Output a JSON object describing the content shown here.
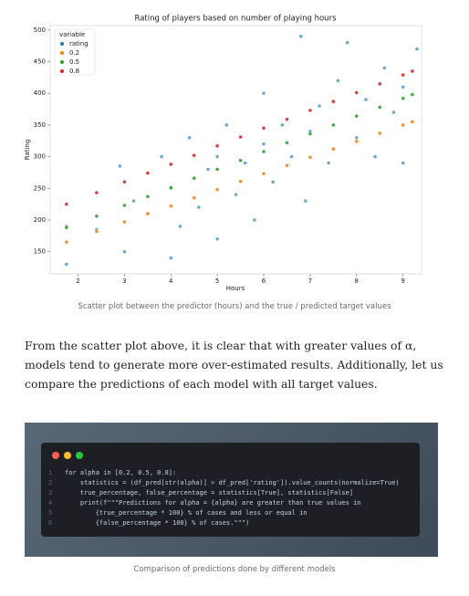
{
  "chart_data": {
    "type": "scatter",
    "title": "Rating of players based on number of playing hours",
    "x_label": "Hours",
    "y_label": "Rating",
    "legend_title": "variable",
    "legend": "upper left",
    "xlim": [
      1.4,
      9.4
    ],
    "xticks": [
      2,
      3,
      4,
      5,
      6,
      7,
      8,
      9
    ],
    "ylim": [
      115,
      507
    ],
    "yticks": [
      150,
      200,
      250,
      300,
      350,
      400,
      450,
      500
    ],
    "series": [
      {
        "name": "rating",
        "color": "#1f77b4",
        "x": [
          1.75,
          1.75,
          2.4,
          2.9,
          3,
          3.2,
          3.5,
          3.8,
          4,
          4,
          4.2,
          4.4,
          4.6,
          4.8,
          5,
          5,
          5.2,
          5.4,
          5.6,
          5.8,
          6,
          6,
          6.2,
          6.4,
          6.6,
          6.8,
          6.9,
          7,
          7.2,
          7.4,
          7.6,
          7.8,
          8,
          8.2,
          8.4,
          8.6,
          8.8,
          9,
          9,
          9.3
        ],
        "values": [
          130,
          190,
          185,
          285,
          150,
          230,
          210,
          300,
          140,
          250,
          190,
          330,
          220,
          280,
          170,
          300,
          350,
          240,
          290,
          200,
          320,
          400,
          260,
          350,
          300,
          490,
          230,
          340,
          380,
          290,
          420,
          480,
          330,
          390,
          300,
          440,
          370,
          290,
          410,
          470
        ]
      },
      {
        "name": "0.2",
        "color": "#ff7f0e",
        "x": [
          1.75,
          2.4,
          3,
          3.5,
          4,
          4.5,
          5,
          5.5,
          6,
          6.5,
          7,
          7.5,
          8,
          8.5,
          9,
          9.2
        ],
        "values": [
          165,
          182,
          197,
          210,
          222,
          235,
          248,
          261,
          273,
          286,
          299,
          312,
          324,
          337,
          350,
          355
        ]
      },
      {
        "name": "0.5",
        "color": "#2ca02c",
        "x": [
          1.75,
          2.4,
          3,
          3.5,
          4,
          4.5,
          5,
          5.5,
          6,
          6.5,
          7,
          7.5,
          8,
          8.5,
          9,
          9.2
        ],
        "values": [
          188,
          206,
          223,
          237,
          251,
          266,
          280,
          294,
          308,
          322,
          336,
          350,
          364,
          378,
          392,
          398
        ]
      },
      {
        "name": "0.8",
        "color": "#d62728",
        "x": [
          1.75,
          2.4,
          3,
          3.5,
          4,
          4.5,
          5,
          5.5,
          6,
          6.5,
          7,
          7.5,
          8,
          8.5,
          9,
          9.2
        ],
        "values": [
          225,
          243,
          260,
          274,
          288,
          302,
          317,
          331,
          345,
          359,
          373,
          387,
          401,
          415,
          429,
          435
        ]
      }
    ]
  },
  "caption_1": "Scatter plot between the predictor (hours) and the true / predicted target values",
  "paragraph": "From the scatter plot above, it is clear that with greater values of α, models tend to generate more over-estimated results. Additionally, let us compare the predictions of each model with all target values.",
  "code": {
    "line_numbers": [
      1,
      2,
      3,
      4,
      5,
      6
    ],
    "lines": [
      "for alpha in [0.2, 0.5, 0.8]:",
      "    statistics = (df_pred[str(alpha)] > df_pred['rating']).value_counts(normalize=True)",
      "    true_percentage, false_percentage = statistics[True], statistics[False]",
      "    print(f\"\"\"Predictions for alpha = {alpha} are greater than true values in",
      "        {true_percentage * 100} % of cases and less or equal in",
      "        {false_percentage * 100} % of cases.\"\"\")"
    ]
  },
  "caption_2": "Comparison of predictions done by different models"
}
